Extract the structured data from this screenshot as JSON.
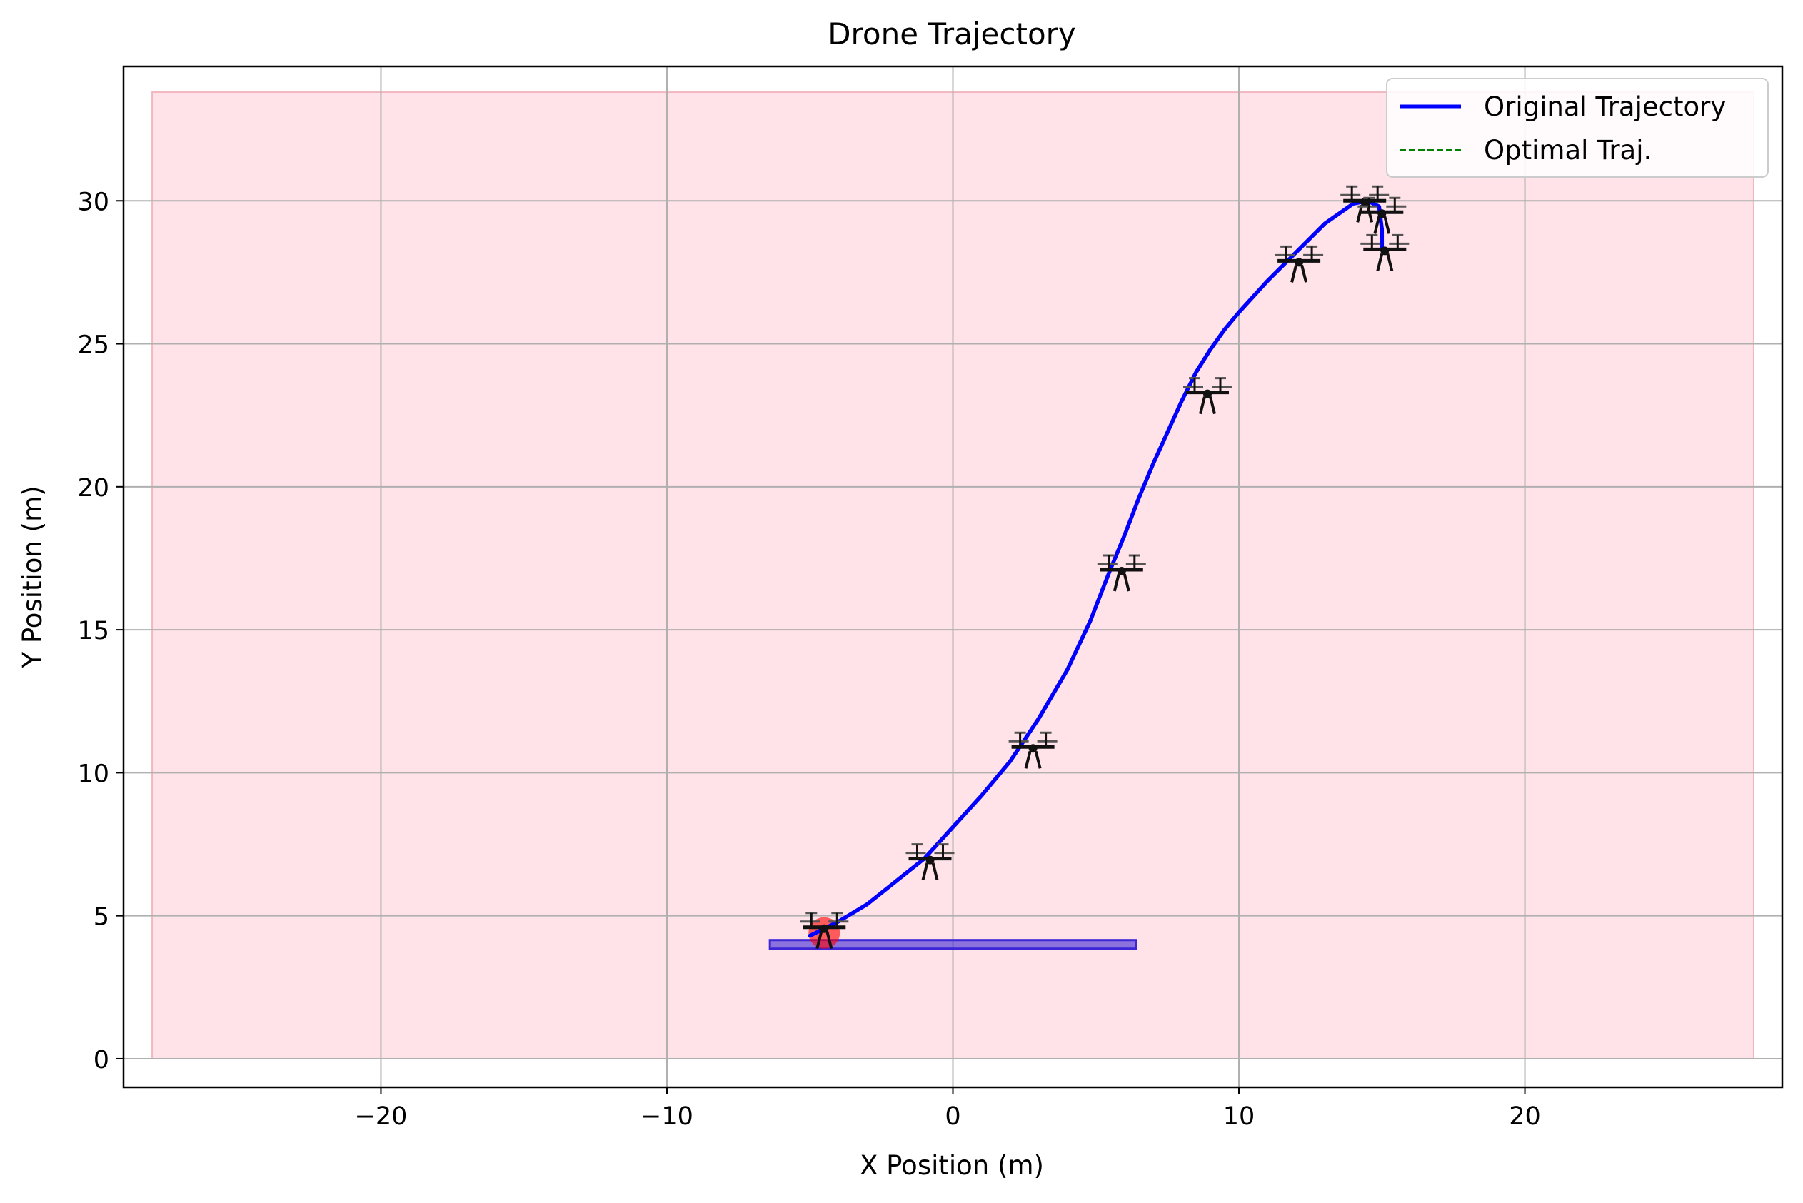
{
  "chart_data": {
    "type": "line",
    "title": "Drone Trajectory",
    "xlabel": "X Position (m)",
    "ylabel": "Y Position (m)",
    "xlim": [
      -29,
      29
    ],
    "ylim": [
      -1,
      34.7
    ],
    "xticks": [
      -20,
      -10,
      0,
      10,
      20
    ],
    "yticks": [
      0,
      5,
      10,
      15,
      20,
      25,
      30
    ],
    "xtick_labels": [
      "−20",
      "−10",
      "0",
      "10",
      "20"
    ],
    "ytick_labels": [
      "0",
      "5",
      "10",
      "15",
      "20",
      "25",
      "30"
    ],
    "grid": true,
    "legend_position": "top-right",
    "legend": [
      {
        "label": "Original Trajectory",
        "color": "#0000ff",
        "style": "solid"
      },
      {
        "label": "Optimal Traj.",
        "color": "#008000",
        "style": "dashed"
      }
    ],
    "series": [
      {
        "name": "Original Trajectory",
        "color": "#0000ff",
        "x": [
          -5.0,
          -4.0,
          -3.0,
          -2.0,
          -1.0,
          0.0,
          1.0,
          2.0,
          3.0,
          4.0,
          4.8,
          5.5,
          6.0,
          6.5,
          7.0,
          7.5,
          8.0,
          8.5,
          9.0,
          9.5,
          10.0,
          11.0,
          12.0,
          13.0,
          14.0,
          14.5,
          14.9,
          15.0,
          15.0
        ],
        "y": [
          4.3,
          4.8,
          5.4,
          6.2,
          7.0,
          8.1,
          9.2,
          10.4,
          11.9,
          13.6,
          15.3,
          17.1,
          18.3,
          19.6,
          20.8,
          21.9,
          23.0,
          24.0,
          24.8,
          25.5,
          26.1,
          27.2,
          28.2,
          29.2,
          29.9,
          30.0,
          29.8,
          29.0,
          28.3
        ]
      },
      {
        "name": "Optimal Traj.",
        "color": "#008000",
        "x": [],
        "y": []
      }
    ],
    "region": {
      "x": [
        -28.0,
        28.0
      ],
      "y": [
        0,
        33.8
      ],
      "color": "#ffc0cb",
      "opacity": 0.45
    },
    "platform": {
      "x": [
        -6.4,
        6.4
      ],
      "y": [
        3.85,
        4.15
      ],
      "color": "#3d26d6",
      "opacity": 0.6
    },
    "start_marker": {
      "x": -4.5,
      "y": 4.4,
      "color": "#ff0000",
      "opacity": 0.6
    },
    "drones": [
      {
        "x": -4.5,
        "y": 4.6
      },
      {
        "x": -0.8,
        "y": 7.0
      },
      {
        "x": 2.8,
        "y": 10.9
      },
      {
        "x": 5.9,
        "y": 17.1
      },
      {
        "x": 8.9,
        "y": 23.3
      },
      {
        "x": 12.1,
        "y": 27.9
      },
      {
        "x": 14.4,
        "y": 30.0
      },
      {
        "x": 15.0,
        "y": 29.6
      },
      {
        "x": 15.1,
        "y": 28.3
      }
    ]
  }
}
